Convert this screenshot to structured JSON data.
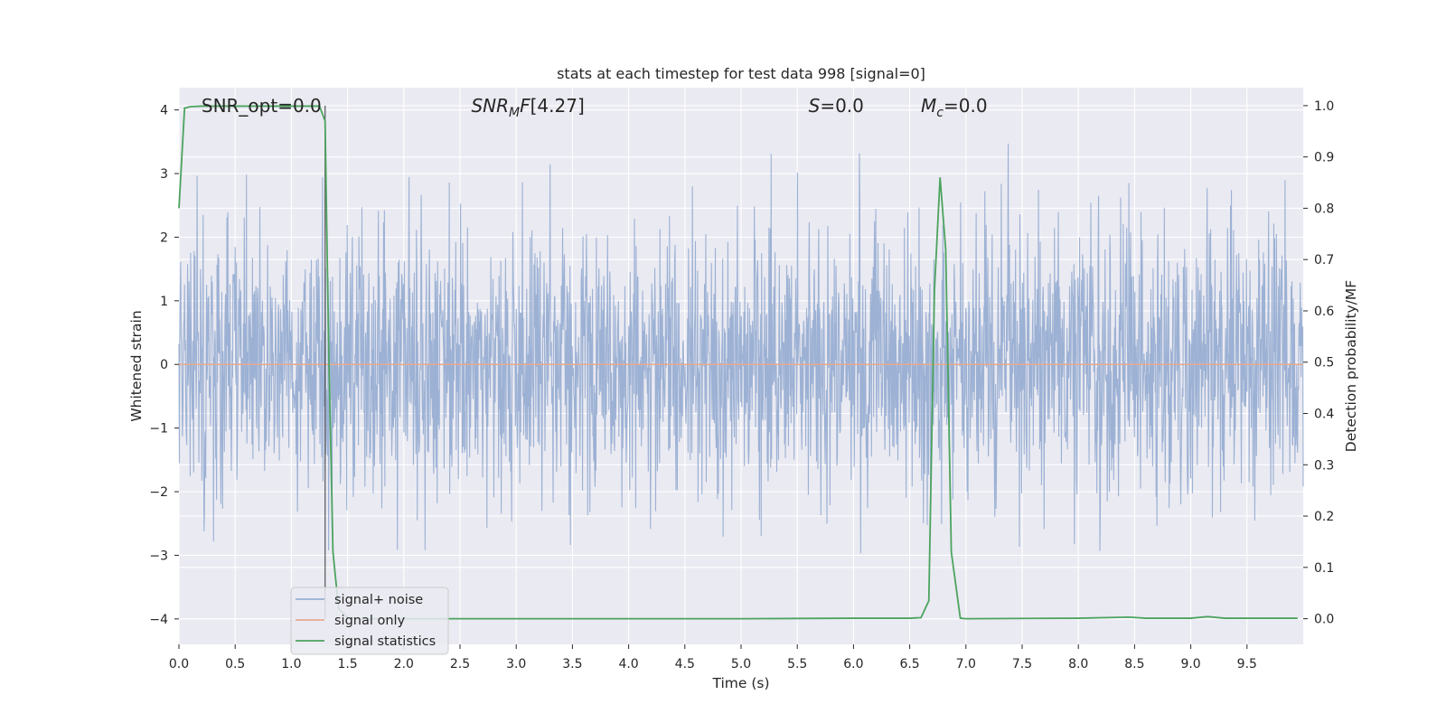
{
  "chart_data": {
    "type": "line",
    "title": "stats at each timestep for test data 998 [signal=0]",
    "xlabel": "Time (s)",
    "ylabel_left": "Whitened strain",
    "ylabel_right": "Detection probability/MF",
    "xlim": [
      0.0,
      10.0
    ],
    "ylim_left": [
      -4.4,
      4.35
    ],
    "ylim_right": [
      -0.05,
      1.035
    ],
    "x_ticks": [
      "0.0",
      "0.5",
      "1.0",
      "1.5",
      "2.0",
      "2.5",
      "3.0",
      "3.5",
      "4.0",
      "4.5",
      "5.0",
      "5.5",
      "6.0",
      "6.5",
      "7.0",
      "7.5",
      "8.0",
      "8.5",
      "9.0",
      "9.5"
    ],
    "y_ticks_left": [
      "4",
      "3",
      "2",
      "1",
      "0",
      "−1",
      "−2",
      "−3",
      "−4"
    ],
    "y_ticks_right": [
      "1.0",
      "0.9",
      "0.8",
      "0.7",
      "0.6",
      "0.5",
      "0.4",
      "0.3",
      "0.2",
      "0.1",
      "0.0"
    ],
    "annotations": [
      {
        "id": "snr_opt",
        "text": "SNR_opt=0.0",
        "x": 0.2
      },
      {
        "id": "snr_mf",
        "text": "[4.27]",
        "x": 2.6
      },
      {
        "id": "s",
        "text": "=0.0",
        "x": 5.6
      },
      {
        "id": "mc",
        "text": "=0.0",
        "x": 6.6
      }
    ],
    "grid": true,
    "legend_position": "lower-left",
    "vline_x": 1.3,
    "series": [
      {
        "name": "signal+ noise",
        "color": "#98aed2",
        "axis": "left",
        "description": "whitened strain, approximately Gaussian noise in [-4, 4]"
      },
      {
        "name": "signal only",
        "color": "#e8a98f",
        "axis": "left",
        "values": "0 everywhere"
      },
      {
        "name": "signal statistics",
        "color": "#4ca35f",
        "axis": "right",
        "x": [
          0.0,
          0.05,
          0.1,
          0.2,
          0.3,
          0.4,
          0.5,
          0.6,
          0.7,
          0.8,
          0.9,
          1.0,
          1.1,
          1.2,
          1.25,
          1.3,
          1.33,
          1.37,
          1.42,
          1.5,
          1.6,
          2.0,
          3.0,
          4.0,
          5.0,
          6.0,
          6.5,
          6.6,
          6.67,
          6.72,
          6.77,
          6.82,
          6.87,
          6.95,
          7.0,
          8.0,
          8.45,
          8.6,
          9.0,
          9.15,
          9.3,
          9.95
        ],
        "y": [
          0.8,
          0.995,
          0.998,
          0.999,
          0.999,
          0.999,
          0.999,
          0.999,
          0.999,
          0.999,
          0.999,
          0.999,
          0.999,
          0.999,
          0.999,
          0.97,
          0.55,
          0.13,
          0.02,
          0.002,
          0.0,
          0.0,
          0.0,
          0.0,
          0.0,
          0.001,
          0.001,
          0.002,
          0.035,
          0.64,
          0.86,
          0.72,
          0.13,
          0.001,
          0.0,
          0.001,
          0.003,
          0.001,
          0.001,
          0.004,
          0.001,
          0.001
        ]
      }
    ]
  },
  "legend": {
    "items": [
      "signal+ noise",
      "signal only",
      "signal statistics"
    ]
  }
}
